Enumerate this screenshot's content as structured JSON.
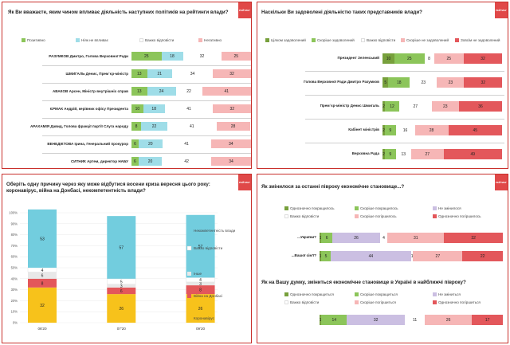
{
  "colors": {
    "strong_pos": "#77a03c",
    "pos": "#8cc55a",
    "light_blue": "#9fdde8",
    "neutral": "#ffffff",
    "hard": "#ffffff",
    "lavender": "#cbbfe2",
    "light_red": "#f6b6b6",
    "red": "#e3575b",
    "other": "#e8e8e8",
    "covid": "#f7c21b",
    "war": "#e3575b",
    "incompetence": "#72cdde",
    "brand": "#e04848"
  },
  "logo_text": "РЕЙТИНГ",
  "charts": {
    "politicians": {
      "title": "Як Ви вважаєте, яким чином впливає діяльність наступних політиків на рейтинги влади?",
      "legend": [
        "Позитивно",
        "Ніяк не впливає",
        "Важко відповісти",
        "Негативно"
      ],
      "series_colors": [
        "pos",
        "light_blue",
        "neutral",
        "light_red"
      ]
    },
    "satisfaction": {
      "title": "Наскільки Ви задоволені діяльністю таких представників влади?",
      "legend": [
        "Цілком задоволений",
        "Скоріше задоволений",
        "Важко відповісти",
        "Скоріше не задоволений",
        "Зовсім не задоволений"
      ],
      "series_colors": [
        "strong_pos",
        "pos",
        "neutral",
        "light_red",
        "red"
      ]
    },
    "crisis": {
      "title": "Оберіть одну причину через яку може відбутися восени криза вересня цього року: коронавірус, війна на Донбасі, некомпетентність влади?",
      "legend": [
        "Некомпетентність влади",
        "Важко відповісти",
        "Інше",
        "Війна на Донбасі",
        "Коронавірус"
      ]
    },
    "economy": {
      "title": "Як змінилося за останні півроку економічне становище...?",
      "legend": [
        "Однозначно покращилось",
        "Скоріше покращилось",
        "Не змінилося",
        "Важко відповісти",
        "Скоріше погіршилось",
        "Однозначно погіршилось"
      ],
      "series_colors": [
        "strong_pos",
        "pos",
        "lavender",
        "neutral",
        "light_red",
        "red"
      ]
    },
    "forecast": {
      "title": "Як на Вашу думку, зміниться економічне становище в Україні в найближчі півроку?",
      "legend": [
        "Однозначно покращиться",
        "Скоріше покращиться",
        "Не зміниться",
        "Важко відповісти",
        "Скоріше погіршиться",
        "Однозначно погіршиться"
      ],
      "series_colors": [
        "strong_pos",
        "pos",
        "lavender",
        "neutral",
        "light_red",
        "red"
      ]
    }
  },
  "chart_data": [
    {
      "type": "bar",
      "orientation": "horizontal",
      "stacked": true,
      "title": "Як Ви вважаєте, яким чином впливає діяльність наступних політиків на рейтинги влади?",
      "categories": [
        "РАЗУМКОВ Дмитро, Голова Верховної Ради",
        "ШМИГАЛЬ Денис, Прем`єр-міністр",
        "АВАКОВ Арсен, Міністр внутрішніх справ",
        "ЄРМАК Андрій, керівник офісу Президента",
        "АРАХАМІЯ Давид, Голова фракції партії Слуга народу",
        "ВЕНЕДІКТОВА Ірина, Генеральний прокурор",
        "СИТНИК Артем, директор НАБУ"
      ],
      "series": [
        {
          "name": "Позитивно",
          "values": [
            25,
            13,
            13,
            10,
            8,
            6,
            6
          ]
        },
        {
          "name": "Ніяк не впливає",
          "values": [
            18,
            21,
            24,
            18,
            22,
            20,
            20
          ]
        },
        {
          "name": "Важко відповісти",
          "values": [
            32,
            34,
            22,
            41,
            41,
            41,
            42
          ]
        },
        {
          "name": "Негативно",
          "values": [
            25,
            32,
            41,
            32,
            28,
            34,
            34
          ]
        }
      ]
    },
    {
      "type": "bar",
      "orientation": "horizontal",
      "stacked": true,
      "title": "Наскільки Ви задоволені діяльністю таких представників влади?",
      "categories": [
        "Президент Зеленський",
        "Голова Верховної Ради Дмитро Разумков",
        "Прем`єр-міністр Денис Шмигаль",
        "Кабінет міністрів",
        "Верховна Рада"
      ],
      "series": [
        {
          "name": "Цілком задоволений",
          "values": [
            10,
            5,
            2,
            2,
            2
          ]
        },
        {
          "name": "Скоріше задоволений",
          "values": [
            25,
            18,
            12,
            9,
            9
          ]
        },
        {
          "name": "Важко відповісти",
          "values": [
            8,
            23,
            27,
            16,
            13
          ]
        },
        {
          "name": "Скоріше не задоволений",
          "values": [
            25,
            23,
            23,
            28,
            27
          ]
        },
        {
          "name": "Зовсім не задоволений",
          "values": [
            32,
            32,
            36,
            45,
            49
          ]
        }
      ]
    },
    {
      "type": "bar",
      "orientation": "vertical",
      "stacked": true,
      "title": "Оберіть одну причину через яку може відбутися восени криза вересня цього року: коронавірус, війна на Донбасі, некомпетентність влади?",
      "categories": [
        "06'20",
        "07'20",
        "09'20"
      ],
      "ylim": [
        0,
        100
      ],
      "yticks": [
        "0%",
        "10%",
        "20%",
        "30%",
        "40%",
        "50%",
        "60%",
        "70%",
        "80%",
        "90%",
        "100%"
      ],
      "series": [
        {
          "name": "Коронавірус",
          "values": [
            32,
            26,
            26
          ]
        },
        {
          "name": "Війна на Донбасі",
          "values": [
            8,
            6,
            8
          ]
        },
        {
          "name": "Інше",
          "values": [
            6,
            3,
            3
          ]
        },
        {
          "name": "Важко відповісти",
          "values": [
            4,
            5,
            4
          ]
        },
        {
          "name": "Некомпетентність влади",
          "values": [
            53,
            57,
            57
          ]
        }
      ]
    },
    {
      "type": "bar",
      "orientation": "horizontal",
      "stacked": true,
      "title": "Як змінилося за останні півроку економічне становище...?",
      "categories": [
        "...України?",
        "...Вашої сім'ї?"
      ],
      "series": [
        {
          "name": "Однозначно покращилось",
          "values": [
            1,
            1
          ]
        },
        {
          "name": "Скоріше покращилось",
          "values": [
            6,
            5
          ]
        },
        {
          "name": "Не змінилося",
          "values": [
            26,
            44
          ]
        },
        {
          "name": "Важко відповісти",
          "values": [
            4,
            1
          ]
        },
        {
          "name": "Скоріше погіршилось",
          "values": [
            31,
            27
          ]
        },
        {
          "name": "Однозначно погіршилось",
          "values": [
            32,
            22
          ]
        }
      ]
    },
    {
      "type": "bar",
      "orientation": "horizontal",
      "stacked": true,
      "title": "Як на Вашу думку, зміниться економічне становище в Україні в найближчі півроку?",
      "categories": [
        ""
      ],
      "series": [
        {
          "name": "Однозначно покращиться",
          "values": [
            1
          ]
        },
        {
          "name": "Скоріше покращиться",
          "values": [
            14
          ]
        },
        {
          "name": "Не зміниться",
          "values": [
            32
          ]
        },
        {
          "name": "Важко відповісти",
          "values": [
            11
          ]
        },
        {
          "name": "Скоріше погіршиться",
          "values": [
            26
          ]
        },
        {
          "name": "Однозначно погіршиться",
          "values": [
            17
          ]
        }
      ]
    }
  ]
}
